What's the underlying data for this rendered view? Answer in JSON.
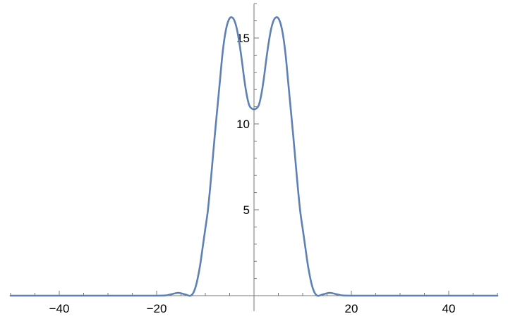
{
  "chart_data": {
    "type": "line",
    "title": "",
    "xlabel": "",
    "ylabel": "",
    "xlim": [
      -50,
      50
    ],
    "ylim": [
      0,
      17
    ],
    "grid": false,
    "line_color": "#5E81B5",
    "x_ticks": [
      -40,
      -20,
      20,
      40
    ],
    "x_tick_labels": [
      "−40",
      "−20",
      "20",
      "40"
    ],
    "y_ticks": [
      5,
      10,
      15
    ],
    "y_tick_labels": [
      "5",
      "10",
      "15"
    ],
    "series": [
      {
        "x": [
          -50,
          -30,
          -20,
          -18,
          -17,
          -16,
          -15.5,
          -15,
          -14,
          -13.5,
          -13,
          -12.5,
          -12,
          -11.5,
          -11,
          -10.5,
          -10,
          -9.5,
          -9,
          -8.5,
          -8,
          -7.5,
          -7,
          -6.5,
          -6,
          -5.5,
          -5,
          -4.5,
          -4,
          -3.5,
          -3,
          -2.5,
          -2,
          -1.5,
          -1,
          -0.5,
          0,
          0.5,
          1,
          1.5,
          2,
          2.5,
          3,
          3.5,
          4,
          4.5,
          5,
          5.5,
          6,
          6.5,
          7,
          7.5,
          8,
          8.5,
          9,
          9.5,
          10,
          10.5,
          11,
          11.5,
          12,
          12.5,
          13,
          13.5,
          14,
          15,
          15.5,
          16,
          17,
          18,
          20,
          30,
          50
        ],
        "y": [
          0,
          0,
          0,
          0.02,
          0.08,
          0.15,
          0.16,
          0.14,
          0.06,
          0.01,
          0,
          0.15,
          0.5,
          1.1,
          1.9,
          2.9,
          3.9,
          4.9,
          6.3,
          7.9,
          9.5,
          11.0,
          12.5,
          14.0,
          15.1,
          15.8,
          16.15,
          16.2,
          16.0,
          15.5,
          14.7,
          13.7,
          12.6,
          11.7,
          11.1,
          10.9,
          10.85,
          10.9,
          11.1,
          11.7,
          12.6,
          13.7,
          14.7,
          15.5,
          16.0,
          16.2,
          16.15,
          15.8,
          15.1,
          14.0,
          12.5,
          11.0,
          9.5,
          7.9,
          6.3,
          4.9,
          3.9,
          2.9,
          1.9,
          1.1,
          0.5,
          0.15,
          0,
          0.01,
          0.06,
          0.14,
          0.16,
          0.15,
          0.08,
          0.02,
          0,
          0,
          0
        ]
      }
    ]
  }
}
